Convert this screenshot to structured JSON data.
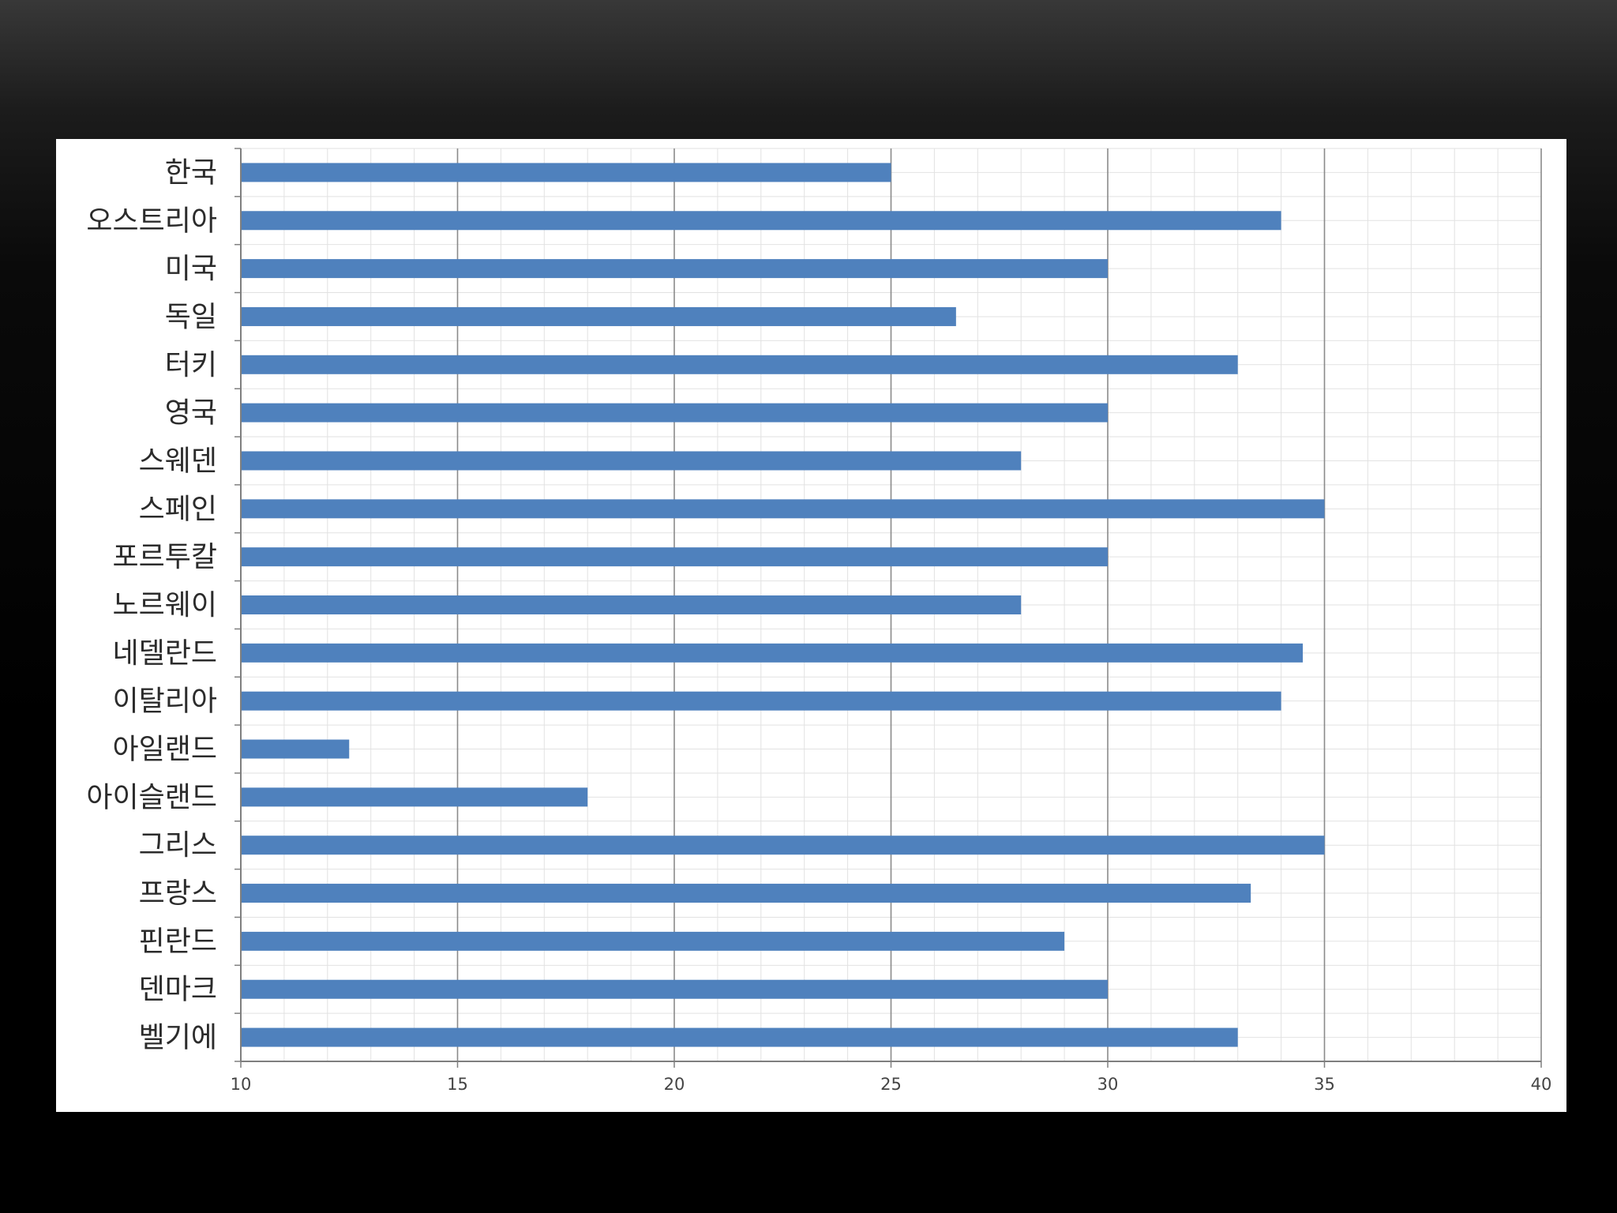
{
  "colors": {
    "bar": "#4f81bd",
    "grid_major": "#8a8a8a",
    "grid_minor": "#e2e2e2",
    "axis": "#7f7f7f",
    "panel": "#ffffff"
  },
  "chart_data": {
    "type": "bar",
    "orientation": "horizontal",
    "title": "",
    "xlabel": "",
    "ylabel": "",
    "xlim": [
      10,
      40
    ],
    "x_ticks": [
      10,
      15,
      20,
      25,
      30,
      35,
      40
    ],
    "grid": true,
    "legend": "none",
    "categories": [
      "한국",
      "오스트리아",
      "미국",
      "독일",
      "터키",
      "영국",
      "스웨덴",
      "스페인",
      "포르투칼",
      "노르웨이",
      "네델란드",
      "이탈리아",
      "아일랜드",
      "아이슬랜드",
      "그리스",
      "프랑스",
      "핀란드",
      "덴마크",
      "벨기에"
    ],
    "values": [
      25,
      34,
      30,
      26.5,
      33,
      30,
      28,
      35,
      30,
      28,
      34.5,
      34,
      12.5,
      18,
      35,
      33.3,
      29,
      30,
      33
    ]
  }
}
